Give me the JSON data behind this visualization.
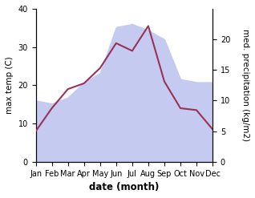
{
  "months": [
    "Jan",
    "Feb",
    "Mar",
    "Apr",
    "May",
    "Jun",
    "Jul",
    "Aug",
    "Sep",
    "Oct",
    "Nov",
    "Dec"
  ],
  "max_temp": [
    8.0,
    14.0,
    19.0,
    20.5,
    24.5,
    31.0,
    29.0,
    35.5,
    21.0,
    14.0,
    13.5,
    8.5
  ],
  "precipitation": [
    10.0,
    9.5,
    10.5,
    13.0,
    14.5,
    22.0,
    22.5,
    21.5,
    20.0,
    13.5,
    13.0,
    13.0
  ],
  "temp_color": "#993355",
  "precip_fill_color": "#c5caf0",
  "left_ylim": [
    0,
    40
  ],
  "right_ylim": [
    0,
    25
  ],
  "left_yticks": [
    0,
    10,
    20,
    30,
    40
  ],
  "right_yticks": [
    0,
    5,
    10,
    15,
    20
  ],
  "ylabel_left": "max temp (C)",
  "ylabel_right": "med. precipitation (kg/m2)",
  "xlabel": "date (month)",
  "xlabel_fontsize": 8.5,
  "ylabel_fontsize": 7.5,
  "tick_fontsize": 7,
  "linewidth": 1.5,
  "background_color": "#ffffff"
}
